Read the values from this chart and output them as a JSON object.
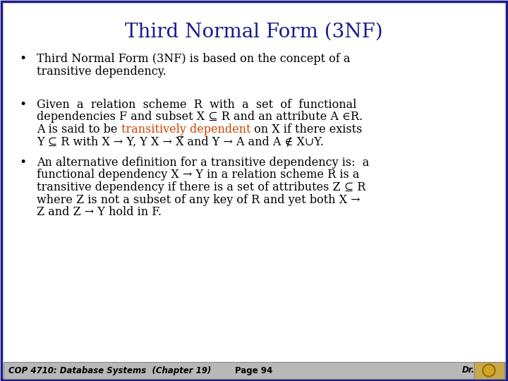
{
  "title": "Third Normal Form (3NF)",
  "title_color": "#1a1a8c",
  "title_fontsize": 20,
  "bg_color": "#eeeef5",
  "border_color": "#1a1a8c",
  "text_color": "#000000",
  "highlight_color": "#cc4400",
  "body_fontsize": 11.5,
  "footer_left": "COP 4710: Database Systems  (Chapter 19)",
  "footer_mid": "Page 94",
  "footer_right": "Dr.",
  "footer_bg": "#b8b8b8",
  "bullet1": [
    "Third Normal Form (3NF) is based on the concept of a",
    "transitive dependency."
  ],
  "bullet2_plain": [
    "Given  a  relation  scheme  R  with  a  set  of  functional",
    "dependencies F and subset X ⊆ R and an attribute A ∈R."
  ],
  "bullet2_mixed_pre": "A is said to be ",
  "bullet2_mixed_hl": "transitively dependent",
  "bullet2_mixed_post": " on X if there exists",
  "bullet2_last": "Y ⊆ R with X → Y, Y X → X̅ and Y → A and A ∉ X∪Y.",
  "bullet3": [
    "An alternative definition for a transitive dependency is:  a",
    "functional dependency X → Y in a relation scheme R is a",
    "transitive dependency if there is a set of attributes Z ⊆ R",
    "where Z is not a subset of any key of R and yet both X →",
    "Z and Z → Y hold in F."
  ]
}
